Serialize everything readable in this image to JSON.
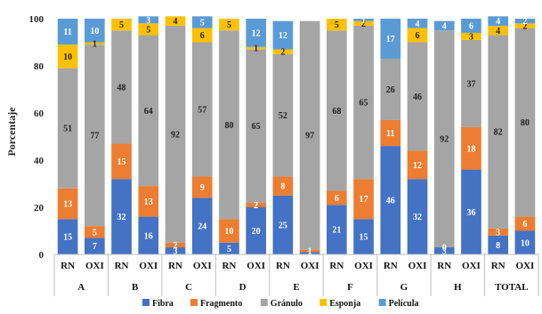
{
  "chart_data": {
    "type": "bar",
    "stacked": true,
    "ylabel": "Porcentaje",
    "ylim": [
      0,
      100
    ],
    "yticks": [
      0,
      20,
      40,
      60,
      80,
      100
    ],
    "grid": false,
    "legend_position": "bottom",
    "groups": [
      "A",
      "B",
      "C",
      "D",
      "E",
      "F",
      "G",
      "H",
      "TOTAL"
    ],
    "categories": [
      "RN",
      "OXI",
      "RN",
      "OXI",
      "RN",
      "OXI",
      "RN",
      "OXI",
      "RN",
      "OXI",
      "RN",
      "OXI",
      "RN",
      "OXI",
      "RN",
      "OXI",
      "RN",
      "OXI"
    ],
    "series": [
      {
        "name": "Fibra",
        "color": "#4472C4",
        "values": [
          15,
          7,
          32,
          16,
          3,
          24,
          5,
          20,
          25,
          1,
          21,
          15,
          46,
          32,
          3,
          36,
          8,
          10
        ]
      },
      {
        "name": "Fragmento",
        "color": "#ED7D31",
        "values": [
          13,
          5,
          15,
          13,
          2,
          9,
          10,
          2,
          8,
          1,
          6,
          17,
          11,
          12,
          0,
          18,
          3,
          6
        ]
      },
      {
        "name": "Gránulo",
        "color": "#A5A5A5",
        "values": [
          51,
          77,
          48,
          64,
          92,
          57,
          80,
          65,
          52,
          97,
          68,
          65,
          26,
          46,
          92,
          37,
          82,
          80
        ]
      },
      {
        "name": "Esponja",
        "color": "#FFC000",
        "values": [
          10,
          1,
          5,
          5,
          4,
          6,
          5,
          1,
          2,
          0,
          5,
          2,
          0,
          6,
          0,
          3,
          4,
          2
        ]
      },
      {
        "name": "Película",
        "color": "#5B9BD5",
        "values": [
          11,
          10,
          0,
          3,
          0,
          5,
          0,
          12,
          12,
          0,
          0,
          1,
          17,
          4,
          4,
          6,
          4,
          2
        ]
      }
    ]
  }
}
